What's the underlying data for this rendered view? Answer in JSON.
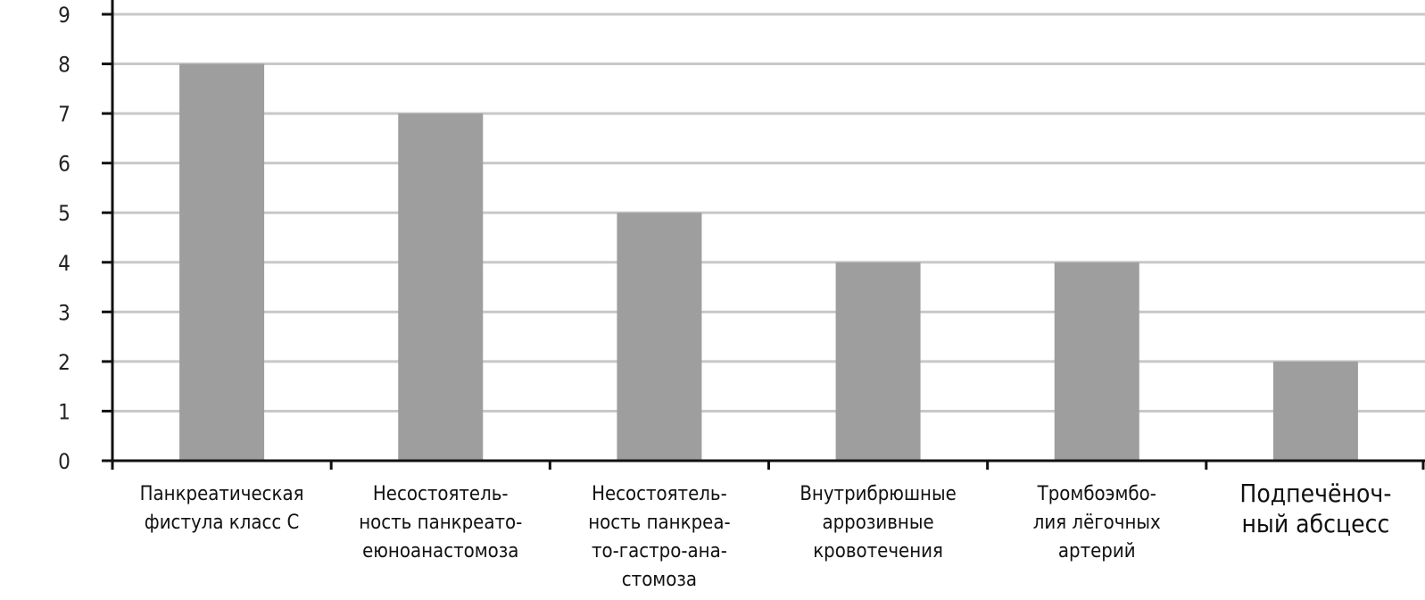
{
  "chart_data": {
    "type": "bar",
    "title": "",
    "xlabel": "",
    "ylabel": "",
    "ylim": [
      0,
      9
    ],
    "yticks": [
      0,
      1,
      2,
      3,
      4,
      5,
      6,
      7,
      8,
      9
    ],
    "grid": true,
    "bar_color": "#9e9e9e",
    "grid_color": "#c8c8c8",
    "axis_color": "#111111",
    "categories": [
      [
        "Панкреатическая",
        "фистула класс С"
      ],
      [
        "Несостоятель-",
        "ность панкреато-",
        "еюноанастомоза"
      ],
      [
        "Несостоятель-",
        "ность панкреа-",
        "то-гастро-ана-",
        "стомоза"
      ],
      [
        "Внутрибрюшные",
        "аррозивные",
        "кровотечения"
      ],
      [
        "Тромбоэмбо-",
        "лия лёгочных",
        "артерий"
      ],
      [
        "Подпечёноч-",
        "ный абсцесс"
      ]
    ],
    "values": [
      8,
      7,
      5,
      4,
      4,
      2
    ]
  }
}
